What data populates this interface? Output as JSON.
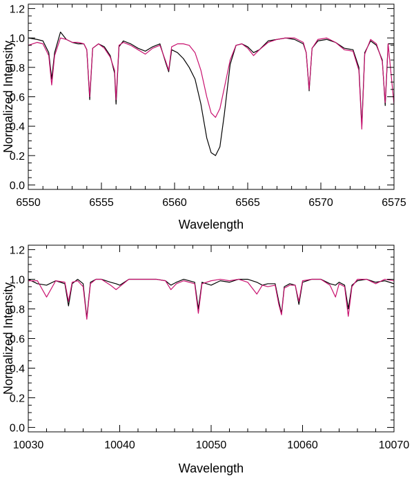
{
  "chart_data": [
    {
      "type": "line",
      "xlabel": "Wavelength",
      "ylabel": "Normalized Intensity",
      "xlim": [
        6550,
        6575
      ],
      "ylim": [
        -0.03,
        1.23
      ],
      "xticks": [
        6550,
        6555,
        6560,
        6565,
        6570,
        6575
      ],
      "yticks": [
        0.0,
        0.2,
        0.4,
        0.6,
        0.8,
        1.0,
        1.2
      ],
      "ytick_labels": [
        "0.0",
        "0.2",
        "0.4",
        "0.6",
        "0.8",
        "1.0",
        "1.2"
      ],
      "grid": false,
      "legend": "none",
      "series": [
        {
          "color": "#000000",
          "x": [
            6550.0,
            6550.6,
            6551.0,
            6551.4,
            6551.6,
            6551.8,
            6552.2,
            6552.6,
            6553.0,
            6553.4,
            6553.8,
            6554.0,
            6554.2,
            6554.4,
            6554.8,
            6555.2,
            6555.6,
            6555.9,
            6556.0,
            6556.2,
            6556.5,
            6557.0,
            6557.5,
            6558.0,
            6558.5,
            6559.0,
            6559.4,
            6559.6,
            6559.8,
            6560.2,
            6560.6,
            6561.0,
            6561.4,
            6561.8,
            6562.2,
            6562.5,
            6562.8,
            6563.1,
            6563.4,
            6563.8,
            6564.2,
            6564.6,
            6565.0,
            6565.4,
            6565.8,
            6566.4,
            6567.0,
            6567.6,
            6568.2,
            6568.8,
            6569.0,
            6569.2,
            6569.4,
            6569.8,
            6570.4,
            6571.0,
            6571.6,
            6572.2,
            6572.6,
            6572.8,
            6573.0,
            6573.4,
            6573.8,
            6574.2,
            6574.4,
            6574.6,
            6575.0
          ],
          "y": [
            1.0,
            0.99,
            0.98,
            0.9,
            0.72,
            0.9,
            1.04,
            0.99,
            0.97,
            0.96,
            0.96,
            0.92,
            0.58,
            0.93,
            0.96,
            0.94,
            0.88,
            0.76,
            0.55,
            0.94,
            0.98,
            0.96,
            0.93,
            0.91,
            0.94,
            0.96,
            0.83,
            0.77,
            0.92,
            0.9,
            0.86,
            0.8,
            0.72,
            0.55,
            0.32,
            0.22,
            0.2,
            0.26,
            0.48,
            0.82,
            0.95,
            0.96,
            0.94,
            0.9,
            0.92,
            0.98,
            0.99,
            1.0,
            0.99,
            0.96,
            0.9,
            0.64,
            0.93,
            0.98,
            0.99,
            0.97,
            0.93,
            0.92,
            0.8,
            0.4,
            0.9,
            0.98,
            0.95,
            0.85,
            0.54,
            0.96,
            0.96
          ]
        },
        {
          "color": "#c8106e",
          "x": [
            6550.0,
            6550.6,
            6551.0,
            6551.4,
            6551.6,
            6551.8,
            6552.2,
            6552.6,
            6553.0,
            6553.4,
            6553.8,
            6554.0,
            6554.2,
            6554.4,
            6554.8,
            6555.2,
            6555.6,
            6555.9,
            6556.0,
            6556.2,
            6556.5,
            6557.0,
            6557.5,
            6558.0,
            6558.5,
            6559.0,
            6559.4,
            6559.6,
            6559.8,
            6560.2,
            6560.6,
            6561.0,
            6561.4,
            6561.8,
            6562.2,
            6562.5,
            6562.8,
            6563.1,
            6563.4,
            6563.8,
            6564.2,
            6564.6,
            6565.0,
            6565.4,
            6565.8,
            6566.4,
            6567.0,
            6567.6,
            6568.2,
            6568.8,
            6569.0,
            6569.2,
            6569.4,
            6569.8,
            6570.4,
            6571.0,
            6571.6,
            6572.2,
            6572.6,
            6572.8,
            6573.0,
            6573.4,
            6573.8,
            6574.2,
            6574.4,
            6574.6,
            6575.0
          ],
          "y": [
            0.95,
            0.97,
            0.96,
            0.88,
            0.68,
            0.88,
            1.0,
            0.99,
            0.97,
            0.97,
            0.96,
            0.92,
            0.6,
            0.93,
            0.96,
            0.93,
            0.87,
            0.78,
            0.58,
            0.95,
            0.97,
            0.95,
            0.92,
            0.89,
            0.93,
            0.95,
            0.84,
            0.78,
            0.94,
            0.96,
            0.96,
            0.95,
            0.9,
            0.78,
            0.6,
            0.49,
            0.46,
            0.52,
            0.66,
            0.85,
            0.95,
            0.96,
            0.93,
            0.88,
            0.92,
            0.97,
            0.99,
            1.0,
            1.0,
            0.97,
            0.9,
            0.65,
            0.93,
            0.99,
            1.0,
            0.97,
            0.92,
            0.91,
            0.78,
            0.38,
            0.89,
            0.99,
            0.96,
            0.84,
            0.56,
            0.96,
            0.55
          ]
        }
      ]
    },
    {
      "type": "line",
      "xlabel": "Wavelength",
      "ylabel": "Normalized Intensity",
      "xlim": [
        10030,
        10070
      ],
      "ylim": [
        -0.03,
        1.23
      ],
      "xticks": [
        10030,
        10040,
        10050,
        10060,
        10070
      ],
      "yticks": [
        0.0,
        0.2,
        0.4,
        0.6,
        0.8,
        1.0,
        1.2
      ],
      "ytick_labels": [
        "0.0",
        "0.2",
        "0.4",
        "0.6",
        "0.8",
        "1.0",
        "1.2"
      ],
      "grid": false,
      "legend": "none",
      "series": [
        {
          "color": "#000000",
          "x": [
            10030.0,
            10031.0,
            10032.0,
            10033.0,
            10034.0,
            10034.4,
            10034.8,
            10035.4,
            10036.0,
            10036.4,
            10036.8,
            10037.4,
            10038.0,
            10039.0,
            10039.6,
            10040.0,
            10041.0,
            10042.0,
            10043.0,
            10044.0,
            10045.0,
            10045.6,
            10046.2,
            10047.0,
            10048.2,
            10048.6,
            10049.0,
            10050.0,
            10051.0,
            10052.0,
            10053.0,
            10054.0,
            10055.0,
            10055.6,
            10056.2,
            10057.0,
            10057.4,
            10057.7,
            10058.0,
            10058.6,
            10059.2,
            10059.6,
            10060.0,
            10061.0,
            10062.0,
            10063.0,
            10063.6,
            10064.0,
            10064.6,
            10065.0,
            10065.4,
            10066.0,
            10067.0,
            10068.0,
            10069.0,
            10070.0
          ],
          "y": [
            1.0,
            0.97,
            0.96,
            0.99,
            0.97,
            0.82,
            0.97,
            1.0,
            0.97,
            0.74,
            0.98,
            1.0,
            1.0,
            0.98,
            0.97,
            0.96,
            1.0,
            1.0,
            1.0,
            1.0,
            0.99,
            0.96,
            0.98,
            1.0,
            0.98,
            0.8,
            0.98,
            0.96,
            0.99,
            0.98,
            1.0,
            1.0,
            0.98,
            0.96,
            0.97,
            0.97,
            0.85,
            0.77,
            0.95,
            0.97,
            0.96,
            0.83,
            0.98,
            1.0,
            1.0,
            0.97,
            0.96,
            0.98,
            0.96,
            0.8,
            0.96,
            0.99,
            1.0,
            0.98,
            0.99,
            0.97
          ]
        },
        {
          "color": "#c8106e",
          "x": [
            10030.0,
            10031.0,
            10032.0,
            10033.0,
            10034.0,
            10034.4,
            10034.8,
            10035.4,
            10036.0,
            10036.4,
            10036.8,
            10037.4,
            10038.0,
            10039.0,
            10039.6,
            10040.0,
            10041.0,
            10042.0,
            10043.0,
            10044.0,
            10045.0,
            10045.6,
            10046.2,
            10047.0,
            10048.2,
            10048.6,
            10049.0,
            10050.0,
            10051.0,
            10052.0,
            10053.0,
            10054.0,
            10055.0,
            10055.6,
            10056.2,
            10057.0,
            10057.4,
            10057.7,
            10058.0,
            10058.6,
            10059.2,
            10059.6,
            10060.0,
            10061.0,
            10062.0,
            10063.0,
            10063.6,
            10064.0,
            10064.6,
            10065.0,
            10065.4,
            10066.0,
            10067.0,
            10068.0,
            10069.0,
            10070.0
          ],
          "y": [
            0.99,
            0.99,
            0.88,
            0.99,
            0.98,
            0.85,
            0.98,
            0.99,
            0.95,
            0.73,
            0.97,
            1.0,
            1.0,
            0.96,
            0.93,
            0.95,
            1.0,
            1.0,
            1.0,
            1.0,
            0.99,
            0.93,
            0.97,
            0.99,
            0.97,
            0.77,
            0.97,
            0.99,
            1.0,
            0.99,
            1.0,
            0.98,
            0.9,
            0.96,
            0.95,
            0.96,
            0.83,
            0.76,
            0.94,
            0.96,
            0.96,
            0.85,
            0.99,
            1.0,
            1.0,
            0.96,
            0.88,
            0.97,
            0.95,
            0.75,
            0.95,
            1.0,
            1.0,
            0.97,
            1.0,
            0.99
          ]
        }
      ]
    }
  ]
}
